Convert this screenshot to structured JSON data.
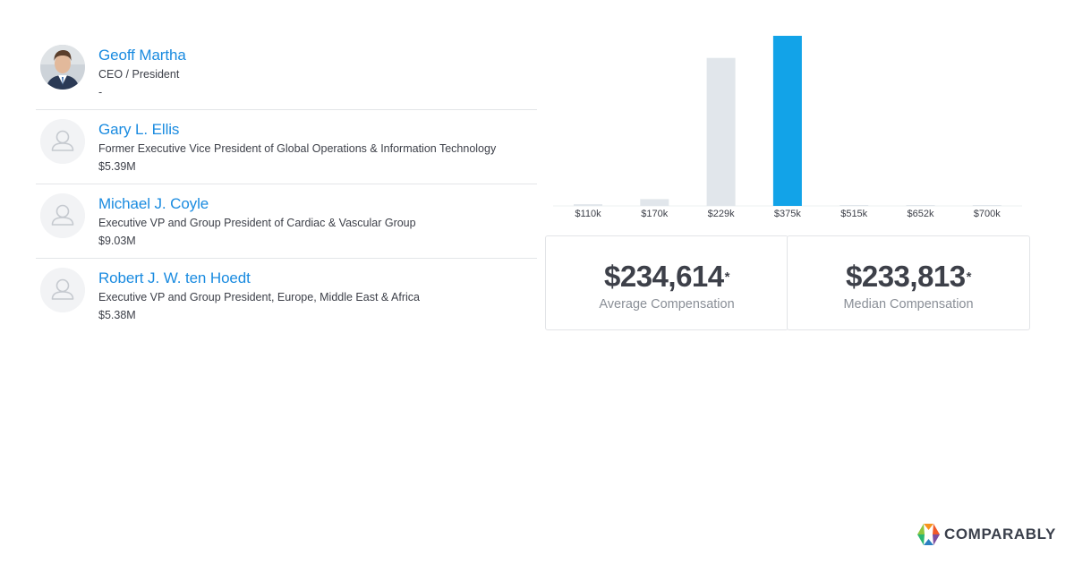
{
  "executives": [
    {
      "name": "Geoff Martha",
      "title": "CEO / President",
      "compensation": "-",
      "avatar": "photo"
    },
    {
      "name": "Gary L. Ellis",
      "title": "Former Executive Vice President of Global Operations & Information Technology",
      "compensation": "$5.39M",
      "avatar": "placeholder-person-icon"
    },
    {
      "name": "Michael J. Coyle",
      "title": "Executive VP and Group President of Cardiac & Vascular Group",
      "compensation": "$9.03M",
      "avatar": "placeholder-person-icon"
    },
    {
      "name": "Robert J. W. ten Hoedt",
      "title": "Executive VP and Group President, Europe, Middle East & Africa",
      "compensation": "$5.38M",
      "avatar": "placeholder-person-icon"
    }
  ],
  "chart_data": {
    "type": "bar",
    "categories": [
      "$110k",
      "$170k",
      "$229k",
      "$375k",
      "$515k",
      "$652k",
      "$700k"
    ],
    "values": [
      1,
      4,
      87,
      100,
      0.3,
      0.3,
      0.3
    ],
    "highlight_index": 3,
    "colors": {
      "bar": "#e1e6eb",
      "highlight": "#12a3e8"
    },
    "title": "",
    "xlabel": "",
    "ylabel": "",
    "grid": false
  },
  "stats": {
    "average": {
      "value": "$234,614",
      "asterisk": "*",
      "label": "Average Compensation"
    },
    "median": {
      "value": "$233,813",
      "asterisk": "*",
      "label": "Median Compensation"
    }
  },
  "brand": {
    "name": "COMPARABLY",
    "icon": "comparably-logo-icon"
  }
}
